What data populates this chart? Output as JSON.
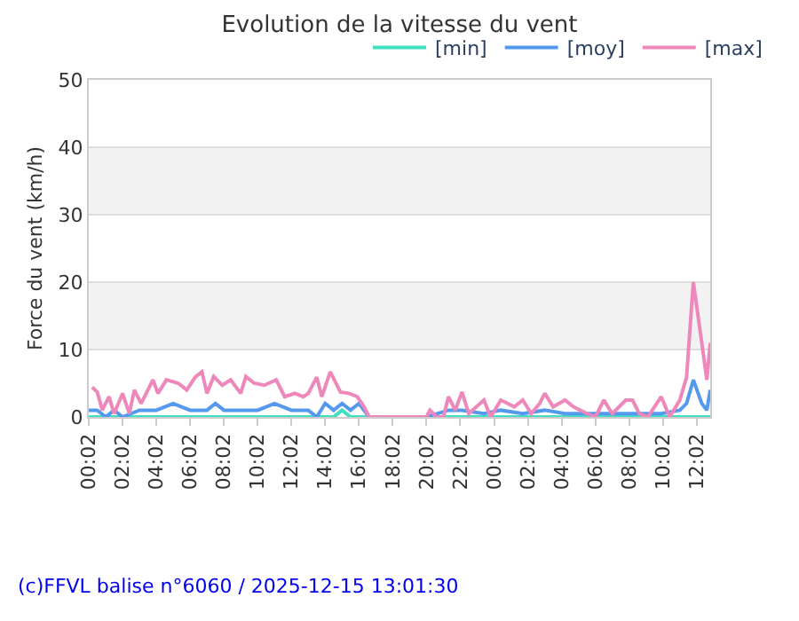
{
  "chart_data": {
    "type": "line",
    "title": "Evolution de la vitesse du vent",
    "ylabel": "Force du vent (km/h)",
    "xlim": [
      "2025-12-14T00:02",
      "2025-12-15T12:50"
    ],
    "ylim": [
      0,
      50
    ],
    "yticks": [
      0,
      10,
      20,
      30,
      40,
      50
    ],
    "xticks": [
      {
        "value": "2025-12-14T00:02",
        "label": "00:02"
      },
      {
        "value": "2025-12-14T02:02",
        "label": "02:02"
      },
      {
        "value": "2025-12-14T04:02",
        "label": "04:02"
      },
      {
        "value": "2025-12-14T06:02",
        "label": "06:02"
      },
      {
        "value": "2025-12-14T08:02",
        "label": "08:02"
      },
      {
        "value": "2025-12-14T10:02",
        "label": "10:02"
      },
      {
        "value": "2025-12-14T12:02",
        "label": "12:02"
      },
      {
        "value": "2025-12-14T14:02",
        "label": "14:02"
      },
      {
        "value": "2025-12-14T16:02",
        "label": "16:02"
      },
      {
        "value": "2025-12-14T18:02",
        "label": "18:02"
      },
      {
        "value": "2025-12-14T20:02",
        "label": "20:02"
      },
      {
        "value": "2025-12-14T22:02",
        "label": "22:02"
      },
      {
        "value": "2025-12-15T00:02",
        "label": "00:02"
      },
      {
        "value": "2025-12-15T02:02",
        "label": "02:02"
      },
      {
        "value": "2025-12-15T04:02",
        "label": "04:02"
      },
      {
        "value": "2025-12-15T06:02",
        "label": "06:02"
      },
      {
        "value": "2025-12-15T08:02",
        "label": "08:02"
      },
      {
        "value": "2025-12-15T10:02",
        "label": "10:02"
      },
      {
        "value": "2025-12-15T12:02",
        "label": "12:02"
      }
    ],
    "grid": "y",
    "legend": "top right",
    "bands": [
      {
        "axis": "y",
        "from": 10,
        "to": 20,
        "color": "#f2f2f2"
      },
      {
        "axis": "y",
        "from": 30,
        "to": 40,
        "color": "#f2f2f2"
      }
    ],
    "annotations": [
      "(c)FFVL balise n°6060 / 2025-12-15 13:01:30"
    ],
    "series": [
      {
        "name": "[min]",
        "color": "#40e0c0",
        "x": [
          "2025-12-14T00:02",
          "2025-12-14T02:02",
          "2025-12-14T04:02",
          "2025-12-14T08:02",
          "2025-12-14T12:02",
          "2025-12-14T14:32",
          "2025-12-14T15:02",
          "2025-12-14T15:32",
          "2025-12-14T16:38",
          "2025-12-14T20:02",
          "2025-12-15T00:02",
          "2025-12-15T04:02",
          "2025-12-15T08:02",
          "2025-12-15T11:50",
          "2025-12-15T12:50"
        ],
        "values": [
          0,
          0,
          0,
          0,
          0,
          0,
          1,
          0,
          0,
          0,
          0,
          0,
          0,
          0,
          0
        ]
      },
      {
        "name": "[moy]",
        "color": "#5599ee",
        "x": [
          "2025-12-14T00:02",
          "2025-12-14T00:32",
          "2025-12-14T01:02",
          "2025-12-14T01:32",
          "2025-12-14T02:02",
          "2025-12-14T03:02",
          "2025-12-14T04:02",
          "2025-12-14T05:02",
          "2025-12-14T06:02",
          "2025-12-14T07:02",
          "2025-12-14T07:32",
          "2025-12-14T08:02",
          "2025-12-14T09:02",
          "2025-12-14T10:02",
          "2025-12-14T11:02",
          "2025-12-14T12:02",
          "2025-12-14T12:32",
          "2025-12-14T13:02",
          "2025-12-14T13:32",
          "2025-12-14T14:02",
          "2025-12-14T14:32",
          "2025-12-14T15:02",
          "2025-12-14T15:32",
          "2025-12-14T16:02",
          "2025-12-14T16:38",
          "2025-12-14T20:02",
          "2025-12-14T21:20",
          "2025-12-14T22:08",
          "2025-12-14T23:26",
          "2025-12-15T00:26",
          "2025-12-15T01:44",
          "2025-12-15T03:02",
          "2025-12-15T04:14",
          "2025-12-15T06:32",
          "2025-12-15T07:50",
          "2025-12-15T09:56",
          "2025-12-15T11:02",
          "2025-12-15T11:26",
          "2025-12-15T11:50",
          "2025-12-15T12:20",
          "2025-12-15T12:38",
          "2025-12-15T12:50"
        ],
        "values": [
          1,
          1,
          0,
          1,
          0,
          1,
          1,
          2,
          1,
          1,
          2,
          1,
          1,
          1,
          2,
          1,
          1,
          1,
          0,
          2,
          1,
          2,
          1,
          2,
          0,
          0,
          1,
          1,
          0.5,
          1,
          0.5,
          1,
          0.5,
          0.5,
          0.5,
          0.5,
          1,
          2,
          5.5,
          2,
          1,
          4
        ]
      },
      {
        "name": "[max]",
        "color": "#ee88bb",
        "x": [
          "2025-12-14T00:14",
          "2025-12-14T00:32",
          "2025-12-14T00:50",
          "2025-12-14T01:14",
          "2025-12-14T01:32",
          "2025-12-14T02:02",
          "2025-12-14T02:26",
          "2025-12-14T02:44",
          "2025-12-14T03:08",
          "2025-12-14T03:50",
          "2025-12-14T04:08",
          "2025-12-14T04:38",
          "2025-12-14T05:20",
          "2025-12-14T05:50",
          "2025-12-14T06:20",
          "2025-12-14T06:44",
          "2025-12-14T07:02",
          "2025-12-14T07:26",
          "2025-12-14T07:56",
          "2025-12-14T08:26",
          "2025-12-14T09:02",
          "2025-12-14T09:20",
          "2025-12-14T09:50",
          "2025-12-14T10:26",
          "2025-12-14T11:08",
          "2025-12-14T11:38",
          "2025-12-14T12:14",
          "2025-12-14T12:44",
          "2025-12-14T13:02",
          "2025-12-14T13:32",
          "2025-12-14T13:50",
          "2025-12-14T14:20",
          "2025-12-14T14:56",
          "2025-12-14T15:26",
          "2025-12-14T15:56",
          "2025-12-14T16:20",
          "2025-12-14T16:38",
          "2025-12-14T20:02",
          "2025-12-14T20:14",
          "2025-12-14T20:38",
          "2025-12-14T21:02",
          "2025-12-14T21:20",
          "2025-12-14T21:44",
          "2025-12-14T22:08",
          "2025-12-14T22:32",
          "2025-12-14T23:26",
          "2025-12-14T23:50",
          "2025-12-15T00:26",
          "2025-12-15T00:50",
          "2025-12-15T01:14",
          "2025-12-15T01:44",
          "2025-12-15T02:14",
          "2025-12-15T02:44",
          "2025-12-15T03:02",
          "2025-12-15T03:32",
          "2025-12-15T04:14",
          "2025-12-15T04:44",
          "2025-12-15T05:32",
          "2025-12-15T06:02",
          "2025-12-15T06:32",
          "2025-12-15T07:02",
          "2025-12-15T07:50",
          "2025-12-15T08:14",
          "2025-12-15T08:38",
          "2025-12-15T09:08",
          "2025-12-15T09:56",
          "2025-12-15T10:26",
          "2025-12-15T11:02",
          "2025-12-15T11:26",
          "2025-12-15T11:50",
          "2025-12-15T12:20",
          "2025-12-15T12:38",
          "2025-12-15T12:50"
        ],
        "values": [
          4.4,
          3.7,
          1,
          3,
          0.5,
          3.5,
          0.5,
          4,
          2,
          5.5,
          3.5,
          5.5,
          5,
          4,
          5.9,
          6.7,
          3.5,
          6,
          4.7,
          5.5,
          3.5,
          6,
          5,
          4.7,
          5.5,
          3,
          3.5,
          3,
          3.5,
          5.9,
          3,
          6.7,
          3.7,
          3.5,
          3,
          1.5,
          0,
          0,
          1,
          0,
          0,
          3,
          1,
          3.7,
          0.5,
          2.5,
          0,
          2.5,
          2,
          1.5,
          2.5,
          0.5,
          2,
          3.5,
          1.5,
          2.5,
          1.5,
          0.5,
          0,
          2.5,
          0.5,
          2.5,
          2.5,
          0.5,
          0,
          3,
          0,
          2.5,
          5.9,
          20,
          11,
          5.5,
          11
        ]
      }
    ]
  }
}
